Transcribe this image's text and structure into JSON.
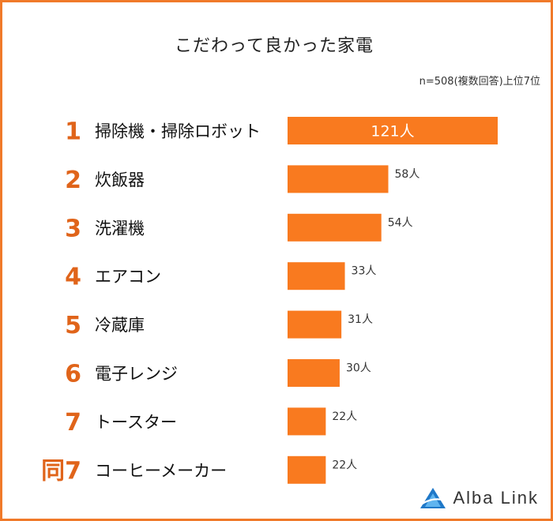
{
  "chart_data": {
    "type": "bar",
    "orientation": "horizontal",
    "title": "こだわって良かった家電",
    "note": "n=508(複数回答)上位7位",
    "ranks": [
      "1",
      "2",
      "3",
      "4",
      "5",
      "6",
      "7",
      "同7"
    ],
    "categories": [
      "掃除機・掃除ロボット",
      "炊飯器",
      "洗濯機",
      "エアコン",
      "冷蔵庫",
      "電子レンジ",
      "トースター",
      "コーヒーメーカー"
    ],
    "values": [
      121,
      58,
      54,
      33,
      31,
      30,
      22,
      22
    ],
    "value_labels": [
      "121人",
      "58人",
      "54人",
      "33人",
      "31人",
      "30人",
      "22人",
      "22人"
    ],
    "xlim": [
      0,
      121
    ],
    "grid": false,
    "bar_color": "#f97a1f",
    "rank_color": "#e0641a"
  },
  "logo": {
    "text": "Alba Link",
    "color": "#1f78c8"
  },
  "frame_color": "#f07a2a"
}
